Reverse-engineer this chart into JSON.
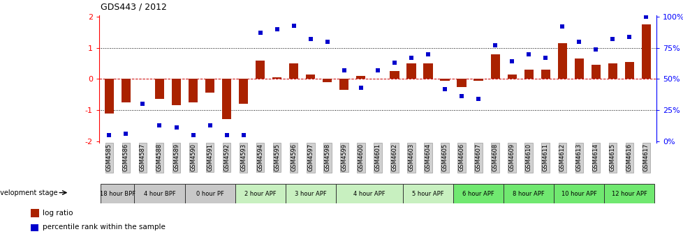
{
  "title": "GDS443 / 2012",
  "samples": [
    "GSM4585",
    "GSM4586",
    "GSM4587",
    "GSM4588",
    "GSM4589",
    "GSM4590",
    "GSM4591",
    "GSM4592",
    "GSM4593",
    "GSM4594",
    "GSM4595",
    "GSM4596",
    "GSM4597",
    "GSM4598",
    "GSM4599",
    "GSM4600",
    "GSM4601",
    "GSM4602",
    "GSM4603",
    "GSM4604",
    "GSM4605",
    "GSM4606",
    "GSM4607",
    "GSM4608",
    "GSM4609",
    "GSM4610",
    "GSM4611",
    "GSM4612",
    "GSM4613",
    "GSM4614",
    "GSM4615",
    "GSM4616",
    "GSM4617"
  ],
  "log_ratio": [
    -1.1,
    -0.75,
    0.0,
    -0.65,
    -0.85,
    -0.75,
    -0.45,
    -1.3,
    -0.8,
    0.6,
    0.05,
    0.5,
    0.15,
    -0.1,
    -0.35,
    0.1,
    0.0,
    0.25,
    0.5,
    0.5,
    -0.05,
    -0.25,
    -0.05,
    0.8,
    0.15,
    0.3,
    0.3,
    1.15,
    0.65,
    0.45,
    0.5,
    0.55,
    1.75
  ],
  "percentile": [
    5,
    6,
    30,
    13,
    11,
    5,
    13,
    5,
    5,
    87,
    90,
    93,
    82,
    80,
    57,
    43,
    57,
    63,
    67,
    70,
    42,
    36,
    34,
    77,
    64,
    70,
    67,
    92,
    80,
    74,
    82,
    84,
    100
  ],
  "groups": [
    {
      "label": "18 hour BPF",
      "start": 0,
      "end": 2,
      "color": "#c8c8c8"
    },
    {
      "label": "4 hour BPF",
      "start": 2,
      "end": 5,
      "color": "#c8c8c8"
    },
    {
      "label": "0 hour PF",
      "start": 5,
      "end": 8,
      "color": "#c8c8c8"
    },
    {
      "label": "2 hour APF",
      "start": 8,
      "end": 11,
      "color": "#c8f0c0"
    },
    {
      "label": "3 hour APF",
      "start": 11,
      "end": 14,
      "color": "#c8f0c0"
    },
    {
      "label": "4 hour APF",
      "start": 14,
      "end": 18,
      "color": "#c8f0c0"
    },
    {
      "label": "5 hour APF",
      "start": 18,
      "end": 21,
      "color": "#c8f0c0"
    },
    {
      "label": "6 hour APF",
      "start": 21,
      "end": 24,
      "color": "#70e870"
    },
    {
      "label": "8 hour APF",
      "start": 24,
      "end": 27,
      "color": "#70e870"
    },
    {
      "label": "10 hour APF",
      "start": 27,
      "end": 30,
      "color": "#70e870"
    },
    {
      "label": "12 hour APF",
      "start": 30,
      "end": 33,
      "color": "#70e870"
    }
  ],
  "ylim": [
    -2,
    2
  ],
  "bar_color": "#aa2200",
  "dot_color": "#0000cc",
  "hline_color": "#cc0000",
  "background_color": "#ffffff"
}
